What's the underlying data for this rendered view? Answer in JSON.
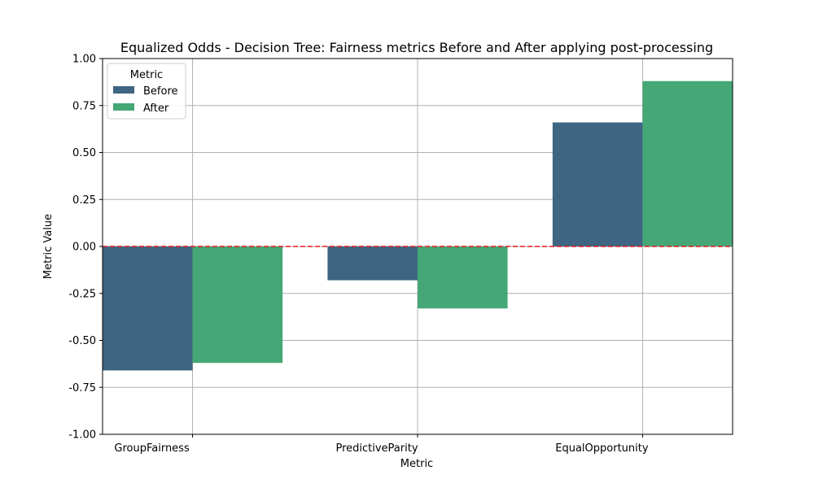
{
  "chart_data": {
    "type": "bar",
    "title": "Equalized Odds - Decision Tree: Fairness metrics Before and After applying post-processing",
    "xlabel": "Metric",
    "ylabel": "Metric Value",
    "categories": [
      "GroupFairness",
      "PredictiveParity",
      "EqualOpportunity"
    ],
    "series": [
      {
        "name": "Before",
        "values": [
          -0.66,
          -0.18,
          0.66
        ],
        "color": "#3e6582"
      },
      {
        "name": "After",
        "values": [
          -0.62,
          -0.33,
          0.88
        ],
        "color": "#45a776"
      }
    ],
    "ylim": [
      -1.0,
      1.0
    ],
    "yticks": [
      "-1.00",
      "-0.75",
      "-0.50",
      "-0.25",
      "0.00",
      "0.25",
      "0.50",
      "0.75",
      "1.00"
    ],
    "grid": true,
    "reference_line": {
      "y": 0,
      "color": "#e41a1c",
      "style": "dashed"
    },
    "legend": {
      "title": "Metric",
      "placement": "top-left"
    }
  }
}
